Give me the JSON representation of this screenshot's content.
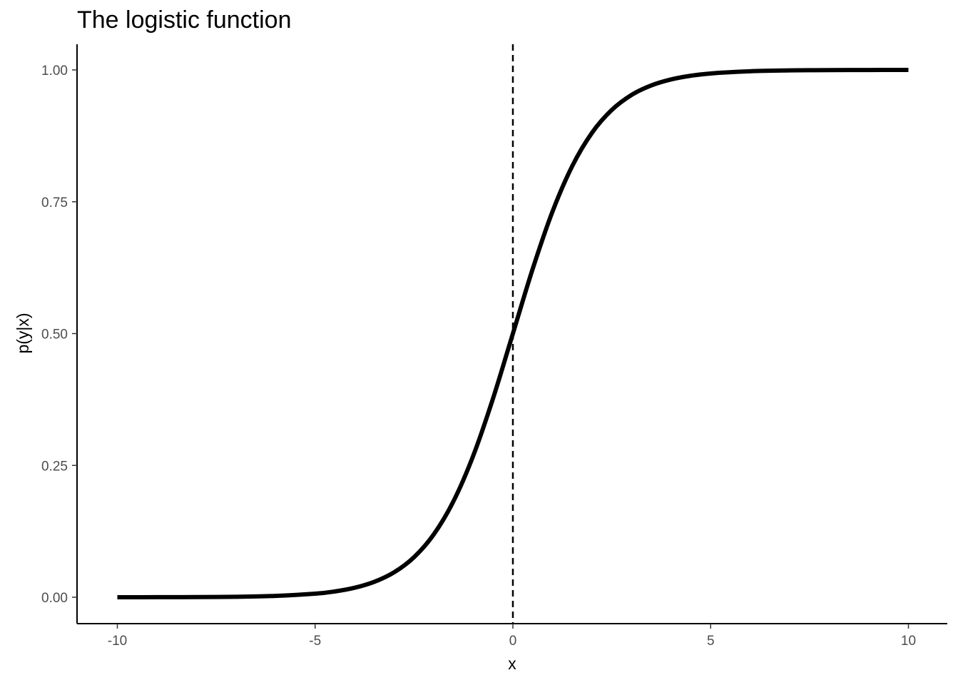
{
  "chart_data": {
    "type": "line",
    "title": "The logistic function",
    "xlabel": "x",
    "ylabel": "p(y|x)",
    "xlim": [
      -10,
      10
    ],
    "ylim": [
      0,
      1
    ],
    "x_ticks": [
      -10,
      -5,
      0,
      5,
      10
    ],
    "x_tick_labels": [
      "-10",
      "-5",
      "0",
      "5",
      "10"
    ],
    "y_ticks": [
      0,
      0.25,
      0.5,
      0.75,
      1
    ],
    "y_tick_labels": [
      "0.00",
      "0.25",
      "0.50",
      "0.75",
      "1.00"
    ],
    "grid": false,
    "series": [
      {
        "color": "#000000",
        "x": [
          -10,
          -9,
          -8,
          -7,
          -6,
          -5,
          -4.5,
          -4,
          -3.5,
          -3,
          -2.5,
          -2,
          -1.5,
          -1,
          -0.5,
          0,
          0.5,
          1,
          1.5,
          2,
          2.5,
          3,
          3.5,
          4,
          4.5,
          5,
          6,
          7,
          8,
          9,
          10
        ],
        "y": [
          0.0,
          0.0001,
          0.0003,
          0.0009,
          0.0025,
          0.0067,
          0.011,
          0.018,
          0.0293,
          0.0474,
          0.0759,
          0.1192,
          0.1824,
          0.2689,
          0.3775,
          0.5,
          0.6225,
          0.7311,
          0.8176,
          0.8808,
          0.9241,
          0.9526,
          0.9707,
          0.982,
          0.989,
          0.9933,
          0.9975,
          0.9991,
          0.9997,
          0.9999,
          1.0
        ]
      }
    ],
    "reference_lines": [
      {
        "orientation": "vertical",
        "x": 0,
        "style": "dashed",
        "color": "#000000"
      }
    ]
  }
}
